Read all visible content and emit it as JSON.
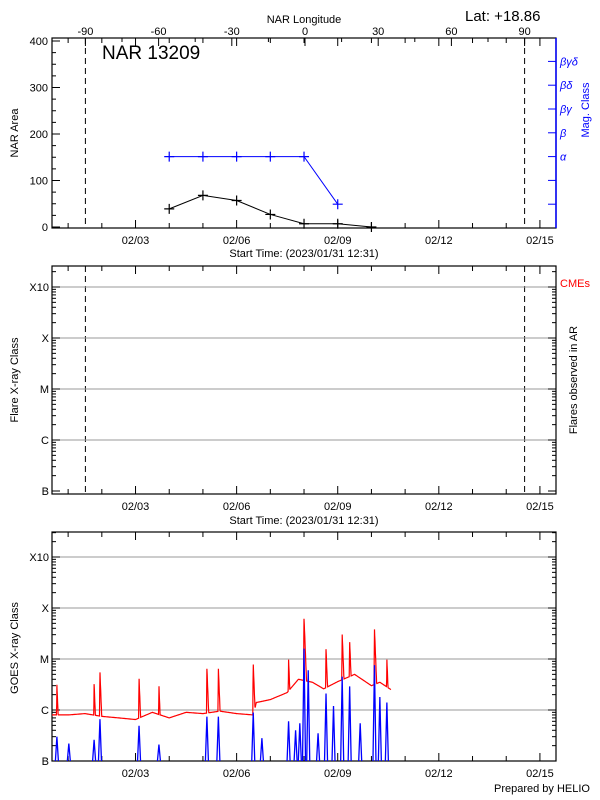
{
  "chart_data": [
    {
      "type": "line",
      "title": "NAR 13209",
      "corner_label": "Lat: +18.86",
      "top_axis_label": "NAR Longitude",
      "top_ticks": [
        -90,
        -60,
        -30,
        0,
        30,
        60,
        90
      ],
      "xlabel": "Start Time: (2023/01/31 12:31)",
      "x_start": "01/31 12:31",
      "x_tick_labels": [
        "02/03",
        "02/06",
        "02/09",
        "02/12",
        "02/15"
      ],
      "ylabel": "NAR Area",
      "ylim": [
        0,
        400
      ],
      "y_ticks": [
        0,
        100,
        200,
        300,
        400
      ],
      "y2label": "Mag. Class",
      "y2_levels": [
        "",
        "",
        "α",
        "β",
        "βγ",
        "βδ",
        "βγδ"
      ],
      "limb_longitudes": [
        -90,
        90
      ],
      "series": [
        {
          "axis": "left",
          "color": "#000000",
          "x": [
            "02/04 00:00",
            "02/05 00:00",
            "02/06 00:00",
            "02/07 00:00",
            "02/08 00:00",
            "02/09 00:00",
            "02/10 00:00"
          ],
          "values": [
            39,
            68,
            57,
            27,
            7,
            7,
            0
          ]
        },
        {
          "axis": "right",
          "color": "#0000ff",
          "x": [
            "02/04 00:00",
            "02/05 00:00",
            "02/06 00:00",
            "02/07 00:00",
            "02/08 00:00",
            "02/09 00:00"
          ],
          "values": [
            "β",
            "β",
            "β",
            "β",
            "β",
            ""
          ],
          "level_index": [
            3,
            3,
            3,
            3,
            3,
            1
          ]
        }
      ]
    },
    {
      "type": "scatter",
      "xlabel": "Start Time: (2023/01/31 12:31)",
      "x_tick_labels": [
        "02/03",
        "02/06",
        "02/09",
        "02/12",
        "02/15"
      ],
      "ylabel": "Flare X-ray Class",
      "y_scale": "log",
      "y_ticks": [
        "B",
        "C",
        "M",
        "X",
        "X10"
      ],
      "y2label": "Flares observed in AR",
      "cme_label": "CMEs",
      "cme_color": "#ff0000",
      "grid": true,
      "points": []
    },
    {
      "type": "line",
      "ylabel": "GOES X-ray Class",
      "y_scale": "log",
      "y_ticks": [
        "B",
        "C",
        "M",
        "X",
        "X10"
      ],
      "ylim_flux": [
        1e-07,
        0.0005
      ],
      "x_tick_labels": [
        "02/03",
        "02/06",
        "02/09",
        "02/12",
        "02/15"
      ],
      "grid": true,
      "footer": "Prepared by HELIO",
      "series": [
        {
          "color": "#ff0000",
          "baseline_x": [
            "01/31 12:31",
            "02/01 00:00",
            "02/01 12:00",
            "02/02 00:00",
            "02/02 12:00",
            "02/03 00:00",
            "02/03 12:00",
            "02/04 00:00",
            "02/04 12:00",
            "02/05 00:00",
            "02/05 12:00",
            "02/06 00:00",
            "02/06 12:00",
            "02/06 14:00",
            "02/07 00:00",
            "02/07 12:00",
            "02/07 20:00",
            "02/08 06:00",
            "02/08 14:00",
            "02/09 00:00",
            "02/09 12:00",
            "02/10 00:00",
            "02/10 06:00",
            "02/10 14:00"
          ],
          "baseline_flux": [
            8e-07,
            8e-07,
            8.5e-07,
            7.5e-07,
            7e-07,
            6.5e-07,
            9e-07,
            7e-07,
            9e-07,
            8.5e-07,
            9.5e-07,
            8.5e-07,
            8e-07,
            1.4e-06,
            1.6e-06,
            2.2e-06,
            4e-06,
            3.5e-06,
            2.6e-06,
            3.6e-06,
            5e-06,
            3e-06,
            3.5e-06,
            2.5e-06
          ],
          "flare_times": [
            "01/31 16:00",
            "02/01 18:30",
            "02/01 22:40",
            "02/03 02:30",
            "02/03 16:40",
            "02/05 02:50",
            "02/05 11:00",
            "02/06 11:50",
            "02/07 13:00",
            "02/08 00:00",
            "02/08 15:40",
            "02/09 03:10",
            "02/09 08:30",
            "02/10 02:10",
            "02/10 11:00"
          ],
          "flare_peaks": [
            3.2e-06,
            3.3e-06,
            5.6e-06,
            4.2e-06,
            3e-06,
            6.6e-06,
            6.6e-06,
            8e-06,
            1e-05,
            6.3e-05,
            1.6e-05,
            3.1e-05,
            2.2e-05,
            3.9e-05,
            1e-05
          ]
        },
        {
          "color": "#0000ff",
          "spike_times": [
            "01/31 16:00",
            "02/01 00:30",
            "02/01 18:30",
            "02/01 22:40",
            "02/03 02:30",
            "02/03 16:40",
            "02/05 02:50",
            "02/05 11:00",
            "02/06 11:50",
            "02/06 18:00",
            "02/07 13:00",
            "02/07 18:00",
            "02/07 21:00",
            "02/08 00:00",
            "02/08 03:00",
            "02/08 10:00",
            "02/08 15:40",
            "02/08 21:00",
            "02/09 03:10",
            "02/09 08:30",
            "02/09 16:00",
            "02/10 02:10",
            "02/10 06:00",
            "02/10 11:00"
          ],
          "spike_flux": [
            3e-07,
            2.2e-07,
            2.6e-07,
            6.6e-07,
            4.9e-07,
            2.1e-07,
            7.4e-07,
            7.4e-07,
            8.9e-07,
            2.8e-07,
            6e-07,
            4e-07,
            5.5e-07,
            1.6e-05,
            6e-06,
            3.5e-07,
            2.1e-06,
            1.2e-06,
            4.5e-06,
            2.9e-06,
            5.5e-07,
            7.6e-06,
            1.8e-06,
            1.4e-06
          ]
        }
      ]
    }
  ]
}
